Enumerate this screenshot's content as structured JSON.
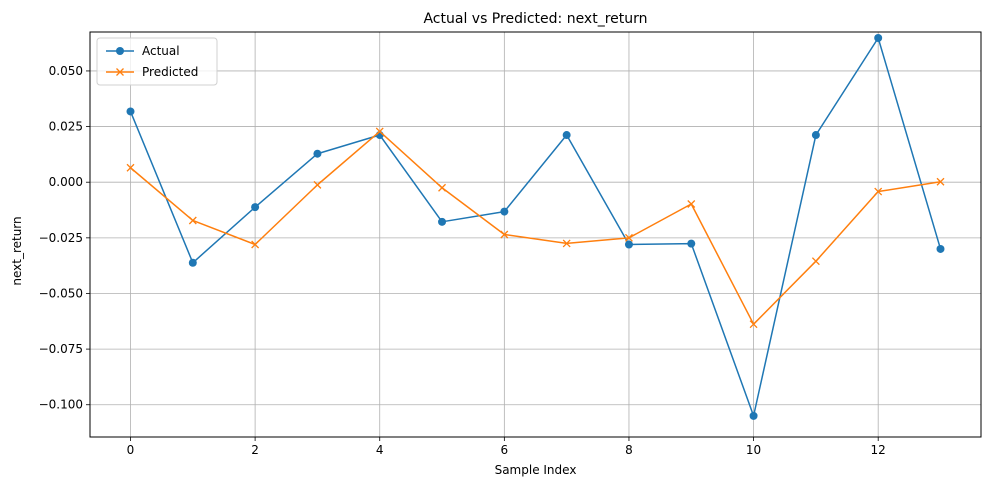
{
  "chart_data": {
    "type": "line",
    "title": "Actual vs Predicted: next_return",
    "xlabel": "Sample Index",
    "ylabel": "next_return",
    "x": [
      0,
      1,
      2,
      3,
      4,
      5,
      6,
      7,
      8,
      9,
      10,
      11,
      12,
      13
    ],
    "xlim": [
      -0.65,
      13.65
    ],
    "ylim": [
      -0.1145,
      0.0675
    ],
    "xticks": [
      0,
      2,
      4,
      6,
      8,
      10,
      12
    ],
    "xtick_labels": [
      "0",
      "2",
      "4",
      "6",
      "8",
      "10",
      "12"
    ],
    "yticks": [
      -0.1,
      -0.075,
      -0.05,
      -0.025,
      0.0,
      0.025,
      0.05
    ],
    "ytick_labels": [
      "−0.100",
      "−0.075",
      "−0.050",
      "−0.025",
      "0.000",
      "0.025",
      "0.050"
    ],
    "grid": true,
    "legend_position": "top-left",
    "series": [
      {
        "name": "Actual",
        "color": "#1f77b4",
        "marker": "circle",
        "values": [
          0.0318,
          -0.0362,
          -0.0112,
          0.0128,
          0.0212,
          -0.0178,
          -0.0132,
          0.0212,
          -0.028,
          -0.0276,
          -0.105,
          0.0212,
          0.0648,
          -0.03
        ]
      },
      {
        "name": "Predicted",
        "color": "#ff7f0e",
        "marker": "x",
        "values": [
          0.0065,
          -0.0172,
          -0.028,
          -0.0012,
          0.0228,
          -0.0025,
          -0.0235,
          -0.0275,
          -0.025,
          -0.0098,
          -0.0638,
          -0.0355,
          -0.0042,
          0.0002
        ]
      }
    ]
  }
}
